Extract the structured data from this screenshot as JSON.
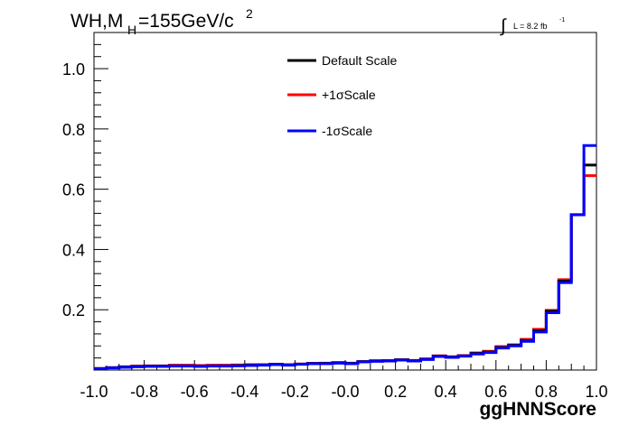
{
  "chart_data": {
    "type": "line",
    "title_main": "WH,M",
    "title_sub": "H",
    "title_tail": "=155GeV/c",
    "title_sup": "2",
    "lumi_integral": "∫",
    "lumi_text": "L = 8.2 fb",
    "lumi_sup": "-1",
    "xlabel": "ggHNNScore",
    "ylabel": "",
    "xlim": [
      -1.0,
      1.0
    ],
    "ylim": [
      0.0,
      1.12
    ],
    "bin_edges": [
      -1.0,
      -0.95,
      -0.9,
      -0.85,
      -0.8,
      -0.75,
      -0.7,
      -0.65,
      -0.6,
      -0.55,
      -0.5,
      -0.45,
      -0.4,
      -0.35,
      -0.3,
      -0.25,
      -0.2,
      -0.15,
      -0.1,
      -0.05,
      0.0,
      0.05,
      0.1,
      0.15,
      0.2,
      0.25,
      0.3,
      0.35,
      0.4,
      0.45,
      0.5,
      0.55,
      0.6,
      0.65,
      0.7,
      0.75,
      0.8,
      0.85,
      0.9,
      0.95,
      1.0
    ],
    "xticks": [
      "-1.0",
      "-0.8",
      "-0.6",
      "-0.4",
      "-0.2",
      "-0.0",
      "0.2",
      "0.4",
      "0.6",
      "0.8",
      "1.0"
    ],
    "xtick_values": [
      -1.0,
      -0.8,
      -0.6,
      -0.4,
      -0.2,
      0.0,
      0.2,
      0.4,
      0.6,
      0.8,
      1.0
    ],
    "yticks": [
      "0.2",
      "0.4",
      "0.6",
      "0.8",
      "1.0"
    ],
    "ytick_values": [
      0.2,
      0.4,
      0.6,
      0.8,
      1.0
    ],
    "grid": false,
    "legend_position": "top-center",
    "series": [
      {
        "name": "Default Scale",
        "color": "#000000",
        "values": [
          0.005,
          0.008,
          0.01,
          0.012,
          0.013,
          0.013,
          0.014,
          0.014,
          0.013,
          0.014,
          0.014,
          0.015,
          0.016,
          0.017,
          0.019,
          0.017,
          0.02,
          0.022,
          0.022,
          0.024,
          0.022,
          0.028,
          0.03,
          0.031,
          0.034,
          0.031,
          0.036,
          0.046,
          0.043,
          0.047,
          0.055,
          0.06,
          0.075,
          0.082,
          0.098,
          0.13,
          0.195,
          0.295,
          0.515,
          0.68
        ]
      },
      {
        "name": "+1σScale",
        "color": "#ff0000",
        "values": [
          0.005,
          0.008,
          0.011,
          0.013,
          0.014,
          0.014,
          0.016,
          0.016,
          0.015,
          0.016,
          0.016,
          0.017,
          0.018,
          0.018,
          0.019,
          0.018,
          0.02,
          0.022,
          0.023,
          0.025,
          0.023,
          0.028,
          0.031,
          0.031,
          0.034,
          0.032,
          0.037,
          0.047,
          0.044,
          0.048,
          0.057,
          0.062,
          0.078,
          0.084,
          0.102,
          0.135,
          0.198,
          0.3,
          0.516,
          0.645
        ]
      },
      {
        "name": "-1σScale",
        "color": "#0000ff",
        "values": [
          0.005,
          0.007,
          0.009,
          0.011,
          0.012,
          0.012,
          0.013,
          0.013,
          0.012,
          0.013,
          0.013,
          0.014,
          0.015,
          0.016,
          0.018,
          0.016,
          0.019,
          0.021,
          0.021,
          0.023,
          0.021,
          0.027,
          0.029,
          0.03,
          0.033,
          0.03,
          0.035,
          0.045,
          0.042,
          0.046,
          0.053,
          0.058,
          0.073,
          0.08,
          0.095,
          0.126,
          0.19,
          0.29,
          0.515,
          0.745
        ]
      }
    ]
  }
}
